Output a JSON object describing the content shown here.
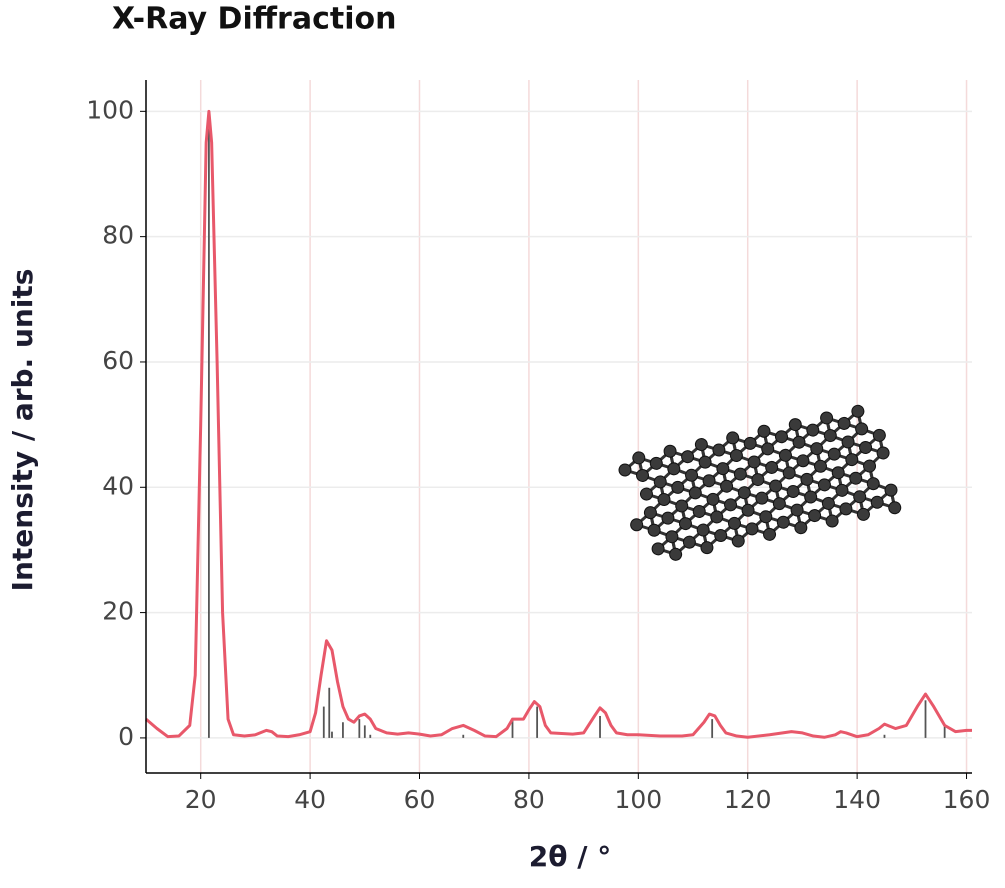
{
  "chart_data": {
    "type": "line",
    "title": "X-Ray Diffraction",
    "x_label": "2θ / °",
    "y_label": "Intensity / arb. units",
    "x": [
      10,
      12,
      14,
      16,
      18,
      19,
      20,
      21,
      21.5,
      22,
      23,
      24,
      25,
      26,
      28,
      30,
      32,
      33,
      34,
      36,
      38,
      40,
      41,
      42,
      43,
      44,
      45,
      46,
      47,
      48,
      49,
      50,
      51,
      52,
      54,
      56,
      58,
      60,
      62,
      64,
      66,
      68,
      70,
      72,
      74,
      76,
      77,
      79,
      80,
      81,
      82,
      83,
      84,
      86,
      88,
      90,
      92,
      93,
      94,
      95,
      96,
      98,
      100,
      104,
      108,
      110,
      112,
      113,
      114,
      115,
      116,
      118,
      120,
      124,
      128,
      130,
      132,
      134,
      136,
      137,
      138,
      140,
      142,
      144,
      145,
      147,
      149,
      151,
      152.5,
      154,
      156,
      158,
      160,
      161
    ],
    "values": [
      3,
      1.5,
      0.2,
      0.3,
      2,
      10,
      50,
      95,
      100,
      95,
      60,
      20,
      3,
      0.5,
      0.3,
      0.5,
      1.2,
      1,
      0.3,
      0.2,
      0.5,
      1,
      4,
      10,
      15.5,
      14,
      9,
      5,
      3,
      2.5,
      3.5,
      3.8,
      3,
      1.5,
      0.8,
      0.6,
      0.8,
      0.6,
      0.3,
      0.5,
      1.5,
      2,
      1.2,
      0.3,
      0.2,
      1.5,
      3,
      3,
      4.5,
      5.8,
      5,
      2,
      0.8,
      0.7,
      0.6,
      0.8,
      3.5,
      4.8,
      4,
      2,
      0.8,
      0.5,
      0.5,
      0.3,
      0.3,
      0.5,
      2.5,
      3.8,
      3.5,
      2,
      0.8,
      0.3,
      0.1,
      0.5,
      1,
      0.8,
      0.3,
      0.1,
      0.5,
      1,
      0.8,
      0.2,
      0.5,
      1.5,
      2.2,
      1.5,
      2,
      5,
      7,
      5,
      2,
      1,
      1.2,
      1.2
    ],
    "color": "#e8586a",
    "reference_peaks": {
      "x": [
        21.5,
        42.5,
        43.5,
        44,
        46,
        49,
        50,
        51,
        68,
        77,
        81.5,
        93,
        113.5,
        145,
        152.5,
        156
      ],
      "values": [
        100,
        5,
        8,
        1,
        2.5,
        3,
        2,
        0.5,
        0.5,
        3,
        5,
        3.5,
        3,
        0.5,
        6,
        2
      ],
      "color": "#555555"
    },
    "xlim": [
      10,
      161
    ],
    "ylim": [
      -5.6,
      105
    ],
    "xticks": [
      20,
      40,
      60,
      80,
      100,
      120,
      140,
      160
    ],
    "yticks": [
      0,
      20,
      40,
      60,
      80,
      100
    ],
    "grid": true
  }
}
